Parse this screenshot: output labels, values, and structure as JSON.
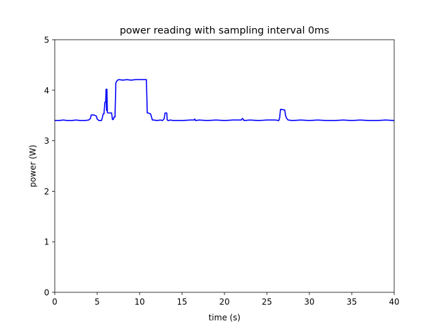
{
  "chart_data": {
    "type": "line",
    "title": "power reading with sampling interval 0ms",
    "xlabel": "time (s)",
    "ylabel": "power (W)",
    "xlim": [
      0,
      40
    ],
    "ylim": [
      0,
      5
    ],
    "xticks": [
      0,
      5,
      10,
      15,
      20,
      25,
      30,
      35,
      40
    ],
    "xtick_labels": [
      "0",
      "5",
      "10",
      "15",
      "20",
      "25",
      "30",
      "35",
      "40"
    ],
    "yticks": [
      0,
      1,
      2,
      3,
      4,
      5
    ],
    "ytick_labels": [
      "0",
      "1",
      "2",
      "3",
      "4",
      "5"
    ],
    "grid": false,
    "legend": "none",
    "series": [
      {
        "color": "#0000ff",
        "x": [
          0,
          0.5,
          1,
          1.5,
          2,
          2.5,
          3,
          3.5,
          4,
          4.2,
          4.3,
          4.6,
          4.9,
          5.0,
          5.2,
          5.5,
          5.6,
          5.7,
          5.8,
          5.9,
          6.0,
          6.05,
          6.1,
          6.15,
          6.2,
          6.3,
          6.5,
          6.7,
          6.8,
          6.9,
          7.0,
          7.1,
          7.2,
          7.4,
          7.6,
          8,
          8.5,
          9,
          9.5,
          10,
          10.5,
          10.8,
          10.9,
          11.0,
          11.3,
          11.4,
          11.5,
          11.7,
          12,
          12.5,
          12.7,
          12.9,
          13.0,
          13.1,
          13.2,
          13.25,
          13.4,
          13.6,
          14,
          15,
          16,
          16.4,
          16.5,
          16.6,
          17,
          18,
          19,
          20,
          21,
          22,
          22.1,
          22.2,
          22.3,
          23,
          24,
          25,
          26,
          26.4,
          26.5,
          26.6,
          26.7,
          26.8,
          27.0,
          27.1,
          27.2,
          27.3,
          27.5,
          28,
          29,
          30,
          31,
          32,
          33,
          34,
          35,
          36,
          37,
          38,
          39,
          40
        ],
        "y": [
          3.4,
          3.4,
          3.41,
          3.4,
          3.4,
          3.41,
          3.4,
          3.4,
          3.41,
          3.44,
          3.51,
          3.51,
          3.49,
          3.43,
          3.4,
          3.4,
          3.45,
          3.53,
          3.53,
          3.76,
          3.77,
          4.02,
          3.6,
          4.02,
          3.56,
          3.55,
          3.55,
          3.55,
          3.42,
          3.42,
          3.47,
          3.47,
          4.15,
          4.2,
          4.21,
          4.2,
          4.21,
          4.2,
          4.21,
          4.21,
          4.21,
          4.21,
          3.55,
          3.55,
          3.53,
          3.47,
          3.41,
          3.41,
          3.4,
          3.41,
          3.4,
          3.44,
          3.55,
          3.55,
          3.55,
          3.41,
          3.4,
          3.41,
          3.4,
          3.4,
          3.41,
          3.41,
          3.43,
          3.4,
          3.41,
          3.4,
          3.41,
          3.4,
          3.41,
          3.41,
          3.44,
          3.43,
          3.4,
          3.41,
          3.4,
          3.41,
          3.41,
          3.4,
          3.45,
          3.62,
          3.62,
          3.62,
          3.61,
          3.61,
          3.5,
          3.45,
          3.41,
          3.4,
          3.41,
          3.4,
          3.41,
          3.4,
          3.4,
          3.41,
          3.4,
          3.41,
          3.4,
          3.4,
          3.41,
          3.4
        ]
      }
    ]
  }
}
